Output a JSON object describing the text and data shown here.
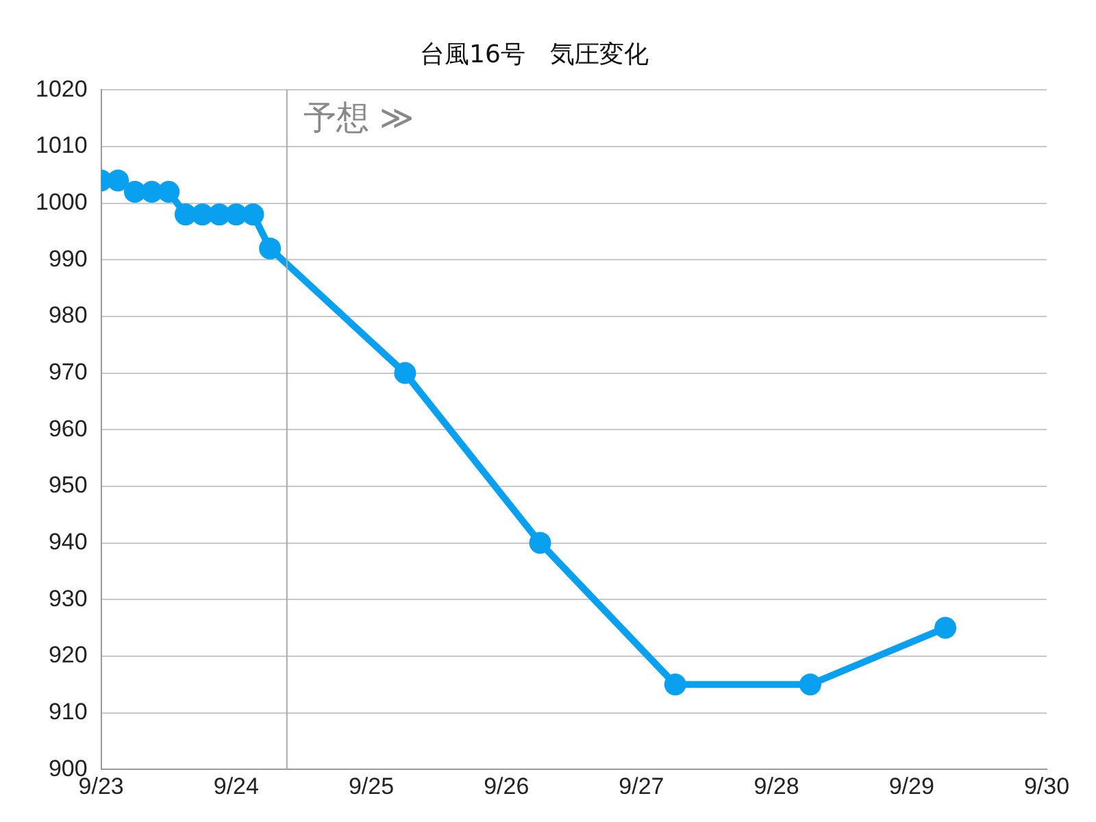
{
  "chart_data": {
    "type": "line",
    "title": "台風16号　気圧変化",
    "x": [
      "--09-23T00:00",
      "--09-23T03:00",
      "--09-23T06:00",
      "--09-23T09:00",
      "--09-23T12:00",
      "--09-23T15:00",
      "--09-23T18:00",
      "--09-23T21:00",
      "--09-24T00:00",
      "--09-24T03:00",
      "--09-24T06:00",
      "--09-25T06:00",
      "--09-26T06:00",
      "--09-27T06:00",
      "--09-28T06:00",
      "--09-29T06:00"
    ],
    "series": [
      {
        "color": "#0aa0f0",
        "values": [
          1004,
          1004,
          1002,
          1002,
          1002,
          998,
          998,
          998,
          998,
          998,
          992,
          970,
          940,
          915,
          915,
          925
        ]
      }
    ],
    "xlim": [
      "--09-23",
      "--09-30"
    ],
    "xticks": [
      {
        "value": "--09-23",
        "label": "9/23"
      },
      {
        "value": "--09-24",
        "label": "9/24"
      },
      {
        "value": "--09-25",
        "label": "9/25"
      },
      {
        "value": "--09-26",
        "label": "9/26"
      },
      {
        "value": "--09-27",
        "label": "9/27"
      },
      {
        "value": "--09-28",
        "label": "9/28"
      },
      {
        "value": "--09-29",
        "label": "9/29"
      },
      {
        "value": "--09-30",
        "label": "9/30"
      }
    ],
    "ylim": [
      900,
      1020
    ],
    "yticks": [
      900,
      910,
      920,
      930,
      940,
      950,
      960,
      970,
      980,
      990,
      1000,
      1010,
      1020
    ],
    "ref_lines": [
      {
        "axis": "x",
        "value": "--09-24T09:00",
        "label": "予想 ≫",
        "color": "#aaaaaa"
      }
    ],
    "grid": "y",
    "marker": "circle",
    "line_style": "solid",
    "legend": false
  }
}
